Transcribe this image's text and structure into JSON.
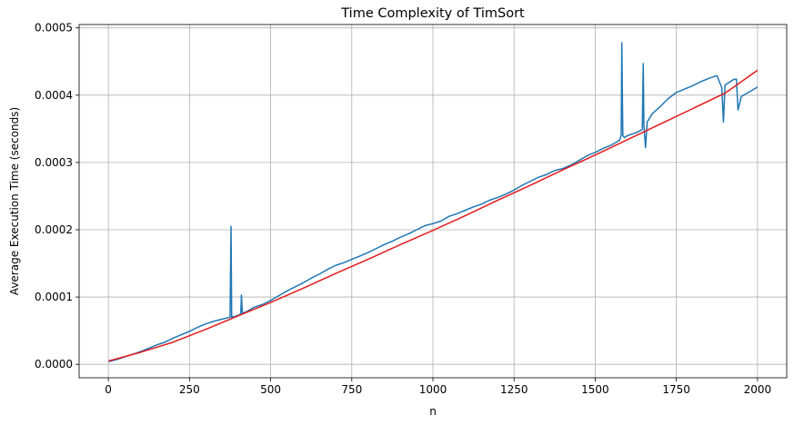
{
  "chart_data": {
    "type": "line",
    "title": "Time Complexity of TimSort",
    "xlabel": "n",
    "ylabel": "Average Execution Time (seconds)",
    "xlim": [
      -90,
      2090
    ],
    "ylim": [
      -2e-05,
      0.000505
    ],
    "grid": true,
    "legend": "none",
    "x_ticks": [
      0,
      250,
      500,
      750,
      1000,
      1250,
      1500,
      1750,
      2000
    ],
    "x_tick_labels": [
      "0",
      "250",
      "500",
      "750",
      "1000",
      "1250",
      "1500",
      "1750",
      "2000"
    ],
    "y_ticks": [
      0,
      0.0001,
      0.0002,
      0.0003,
      0.0004,
      0.0005
    ],
    "y_tick_labels": [
      "0.0000",
      "0.0001",
      "0.0002",
      "0.0003",
      "0.0004",
      "0.0005"
    ],
    "series": [
      {
        "color": "#1f77b4",
        "x": [
          1,
          25,
          50,
          75,
          100,
          125,
          150,
          175,
          200,
          225,
          250,
          275,
          300,
          325,
          350,
          375,
          378,
          380,
          383,
          390,
          400,
          408,
          410,
          413,
          425,
          450,
          475,
          500,
          525,
          550,
          575,
          600,
          625,
          650,
          675,
          700,
          725,
          750,
          775,
          800,
          825,
          850,
          875,
          900,
          925,
          950,
          975,
          1000,
          1025,
          1050,
          1075,
          1100,
          1125,
          1150,
          1175,
          1200,
          1225,
          1250,
          1275,
          1300,
          1325,
          1350,
          1375,
          1400,
          1425,
          1450,
          1475,
          1500,
          1525,
          1550,
          1575,
          1580,
          1582,
          1585,
          1590,
          1600,
          1625,
          1645,
          1648,
          1650,
          1655,
          1660,
          1675,
          1700,
          1725,
          1750,
          1775,
          1800,
          1825,
          1850,
          1875,
          1890,
          1895,
          1900,
          1925,
          1935,
          1940,
          1950,
          1975,
          2000
        ],
        "y": [
          4e-06,
          7e-06,
          1.1e-05,
          1.5e-05,
          1.9e-05,
          2.4e-05,
          2.9e-05,
          3.3e-05,
          3.9e-05,
          4.4e-05,
          4.9e-05,
          5.5e-05,
          6e-05,
          6.4e-05,
          6.7e-05,
          7e-05,
          0.000205,
          7e-05,
          7.1e-05,
          7.1e-05,
          7.3e-05,
          7.5e-05,
          0.000103,
          7.6e-05,
          7.8e-05,
          8.5e-05,
          8.9e-05,
          9.5e-05,
          0.000102,
          0.000109,
          0.000115,
          0.000121,
          0.000128,
          0.000134,
          0.000141,
          0.000147,
          0.000151,
          0.000156,
          0.000161,
          0.000166,
          0.000172,
          0.000178,
          0.000183,
          0.000189,
          0.000194,
          0.0002,
          0.000206,
          0.000209,
          0.000213,
          0.00022,
          0.000224,
          0.000229,
          0.000234,
          0.000238,
          0.000244,
          0.000248,
          0.000253,
          0.000259,
          0.000266,
          0.000272,
          0.000278,
          0.000282,
          0.000288,
          0.000291,
          0.000296,
          0.000303,
          0.00031,
          0.000315,
          0.000321,
          0.000326,
          0.000333,
          0.00034,
          0.000478,
          0.00034,
          0.000337,
          0.00034,
          0.000344,
          0.000349,
          0.000447,
          0.000355,
          0.000322,
          0.00036,
          0.000372,
          0.000383,
          0.000395,
          0.000404,
          0.000409,
          0.000414,
          0.00042,
          0.000425,
          0.000429,
          0.000411,
          0.00036,
          0.000415,
          0.000423,
          0.000424,
          0.000378,
          0.000398,
          0.000405,
          0.000412
        ]
      },
      {
        "color": "#e41a1c",
        "x": [
          1,
          100,
          200,
          300,
          400,
          500,
          600,
          700,
          800,
          900,
          1000,
          1100,
          1200,
          1300,
          1400,
          1500,
          1600,
          1700,
          1800,
          1900,
          2000
        ],
        "y": [
          5e-06,
          1.8e-05,
          3.3e-05,
          5.2e-05,
          7.2e-05,
          9.2e-05,
          0.000113,
          0.000135,
          0.000156,
          0.000178,
          0.000199,
          0.000221,
          0.000244,
          0.000266,
          0.000289,
          0.000311,
          0.000334,
          0.000357,
          0.00038,
          0.000403,
          0.000437
        ]
      }
    ]
  }
}
